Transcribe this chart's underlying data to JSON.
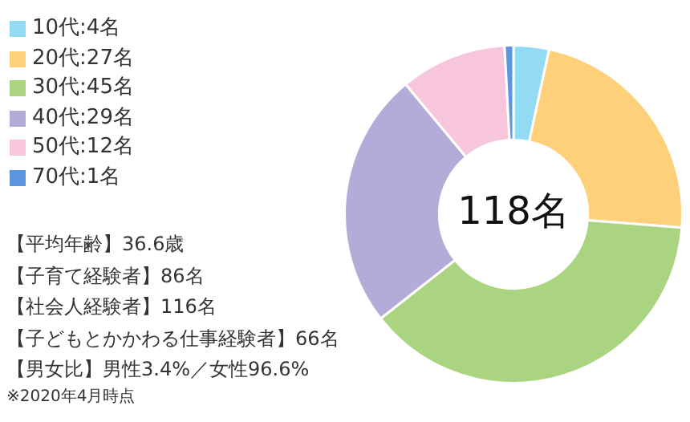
{
  "chart_data": {
    "type": "donut",
    "title": "118名",
    "categories": [
      "10代:4名",
      "20代:27名",
      "30代:45名",
      "40代:29名",
      "50代:12名",
      "70代:1名"
    ],
    "values": [
      4,
      27,
      45,
      29,
      12,
      1
    ],
    "colors": [
      "#93dbf3",
      "#ffd07a",
      "#aad47f",
      "#b3acd8",
      "#f8c6dc",
      "#5b96de"
    ],
    "legend": "top left",
    "annotations": [
      "【平均年齢】36.6歳",
      "【子育て経験者】86名",
      "【社会人経験者】116名",
      "【子どもとかかわる仕事経験者】66名",
      "【男女比】男性3.4%／女性96.6%",
      "※2020年4月時点"
    ]
  }
}
